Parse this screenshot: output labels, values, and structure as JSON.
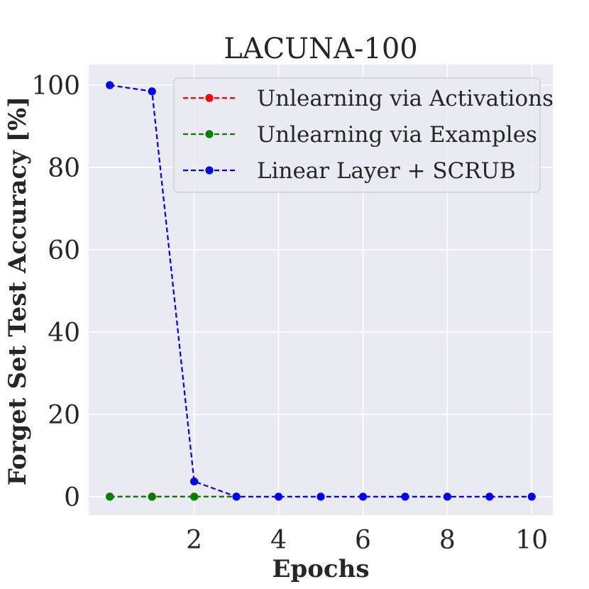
{
  "chart_data": {
    "type": "line",
    "title": "LACUNA-100",
    "xlabel": "Epochs",
    "ylabel": "Forget Set Test Accuracy [%]",
    "xlim": [
      -0.5,
      10.5
    ],
    "ylim": [
      -4.5,
      105
    ],
    "xticks": [
      2,
      4,
      6,
      8,
      10
    ],
    "yticks": [
      0,
      20,
      40,
      60,
      80,
      100
    ],
    "grid": true,
    "legend_position": "top-right",
    "series": [
      {
        "name": "Unlearning via Activations",
        "color": "#ff0000",
        "x": [
          0,
          1,
          2,
          3
        ],
        "y": [
          0,
          0,
          0,
          0
        ]
      },
      {
        "name": "Unlearning via Examples",
        "color": "#008000",
        "x": [
          0,
          1,
          2,
          3
        ],
        "y": [
          0,
          0,
          0,
          0
        ]
      },
      {
        "name": "Linear Layer + SCRUB",
        "color": "#0000ff",
        "x": [
          0,
          1,
          2,
          3,
          4,
          5,
          6,
          7,
          8,
          9,
          10
        ],
        "y": [
          100,
          98.5,
          3.7,
          0,
          0,
          0,
          0,
          0,
          0,
          0,
          0
        ]
      }
    ]
  }
}
